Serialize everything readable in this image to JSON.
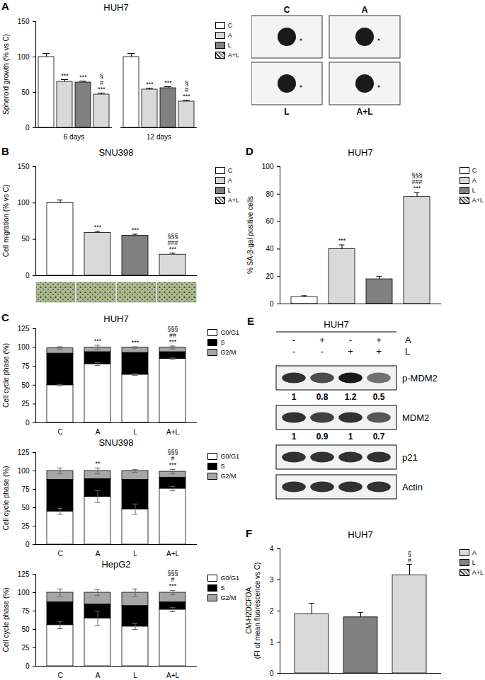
{
  "chart_data": [
    {
      "panel": "A",
      "type": "bar",
      "title": "HUH7",
      "ylabel": "Spheroid growth (% vs C)",
      "categories": [
        "6 days",
        "12 days"
      ],
      "series": [
        {
          "name": "C",
          "color": "#ffffff",
          "values": [
            100,
            100
          ],
          "errors": [
            5,
            5
          ],
          "annotations": [
            null,
            null
          ]
        },
        {
          "name": "A",
          "color": "#d9d9d9",
          "values": [
            65,
            54
          ],
          "errors": [
            3,
            2
          ],
          "annotations": [
            "***",
            "***"
          ]
        },
        {
          "name": "L",
          "color": "#808080",
          "values": [
            64,
            56
          ],
          "errors": [
            2,
            2
          ],
          "annotations": [
            "***",
            "***"
          ]
        },
        {
          "name": "A+L",
          "color": "#d9d9d9",
          "values": [
            47,
            37
          ],
          "errors": [
            2,
            2
          ],
          "annotations": [
            "§\n#\n***",
            "§\n#\n***"
          ]
        }
      ],
      "ylim": [
        0,
        150
      ],
      "yticks": [
        0,
        50,
        100,
        150
      ],
      "legend": "top-right"
    },
    {
      "panel": "B",
      "type": "bar",
      "title": "SNU398",
      "ylabel": "Cell migration (% vs C)",
      "categories": [
        "C",
        "A",
        "L",
        "A+L"
      ],
      "values": [
        100,
        59,
        55,
        29
      ],
      "errors": [
        4,
        2,
        2,
        2
      ],
      "annotations": [
        null,
        "***",
        "***",
        "§§§\n###\n***"
      ],
      "colors": [
        "#ffffff",
        "#d9d9d9",
        "#808080",
        "#d9d9d9"
      ],
      "ylim": [
        0,
        150
      ],
      "yticks": [
        0,
        50,
        100,
        150
      ],
      "legend": "top-right",
      "tick_labels": "y"
    },
    {
      "panel": "C",
      "type": "bar",
      "title": "HUH7",
      "ylabel": "Cell cycle phase (%)",
      "stacked": true,
      "categories": [
        "C",
        "A",
        "L",
        "A+L"
      ],
      "series": [
        {
          "name": "G0/G1",
          "color": "#ffffff",
          "values": [
            50,
            78,
            64,
            85
          ],
          "errors": [
            1,
            2,
            1,
            1
          ]
        },
        {
          "name": "S",
          "color": "#000000",
          "values": [
            42,
            16,
            29,
            9
          ]
        },
        {
          "name": "G2/M",
          "color": "#a6a6a6",
          "values": [
            7,
            6,
            7,
            6
          ],
          "errors": [
            2,
            3,
            1,
            2
          ]
        }
      ],
      "annotations": [
        null,
        "***",
        "***",
        "§§§\n##\n***"
      ],
      "ylim": [
        0,
        125
      ],
      "yticks": [
        0,
        25,
        50,
        75,
        100,
        125
      ],
      "legend": "top-right"
    },
    {
      "type": "bar",
      "title": "SNU398",
      "ylabel": "Cell cycle phase (%)",
      "stacked": true,
      "categories": [
        "C",
        "A",
        "L",
        "A+L"
      ],
      "series": [
        {
          "name": "G0/G1",
          "color": "#ffffff",
          "values": [
            45,
            65,
            48,
            76
          ],
          "errors": [
            4,
            8,
            7,
            3
          ]
        },
        {
          "name": "S",
          "color": "#000000",
          "values": [
            43,
            24,
            40,
            15
          ]
        },
        {
          "name": "G2/M",
          "color": "#a6a6a6",
          "values": [
            12,
            11,
            12,
            8
          ],
          "errors": [
            4,
            4,
            2,
            3
          ]
        }
      ],
      "annotations": [
        null,
        "**",
        null,
        "§§§\n#\n***"
      ],
      "ylim": [
        0,
        125
      ],
      "yticks": [
        0,
        25,
        50,
        75,
        100,
        125
      ],
      "legend": "top-right"
    },
    {
      "type": "bar",
      "title": "HepG2",
      "ylabel": "Cell cycle phase (%)",
      "stacked": true,
      "categories": [
        "C",
        "A",
        "L",
        "A+L"
      ],
      "series": [
        {
          "name": "G0/G1",
          "color": "#ffffff",
          "values": [
            56,
            65,
            54,
            77
          ],
          "errors": [
            5,
            10,
            4,
            3
          ]
        },
        {
          "name": "S",
          "color": "#000000",
          "values": [
            31,
            19,
            28,
            10
          ]
        },
        {
          "name": "G2/M",
          "color": "#a6a6a6",
          "values": [
            13,
            16,
            18,
            13
          ],
          "errors": [
            5,
            4,
            5,
            3
          ]
        }
      ],
      "annotations": [
        null,
        null,
        null,
        "§§§\n#\n***"
      ],
      "ylim": [
        0,
        125
      ],
      "yticks": [
        0,
        25,
        50,
        75,
        100,
        125
      ],
      "legend": "top-right"
    },
    {
      "panel": "D",
      "type": "bar",
      "title": "HUH7",
      "ylabel": "% SA-β-gal positive cells",
      "categories": [
        "C",
        "A",
        "L",
        "A+L"
      ],
      "values": [
        5,
        40,
        18,
        78
      ],
      "errors": [
        1,
        3,
        2,
        3
      ],
      "annotations": [
        null,
        "***",
        null,
        "§§§\n###\n***"
      ],
      "colors": [
        "#ffffff",
        "#d9d9d9",
        "#808080",
        "#d9d9d9"
      ],
      "ylim": [
        0,
        100
      ],
      "yticks": [
        0,
        20,
        40,
        60,
        80,
        100
      ],
      "legend": "top-right",
      "tick_labels": "y"
    },
    {
      "panel": "F",
      "type": "bar",
      "title": "HUH7",
      "ylabel": "CM-H2DCFDA\n(FI of mean fluorescence vs C)",
      "categories": [
        "A",
        "L",
        "A+L"
      ],
      "values": [
        1.9,
        1.8,
        3.15
      ],
      "errors": [
        0.35,
        0.15,
        0.35
      ],
      "annotations": [
        null,
        null,
        "§\n#"
      ],
      "colors": [
        "#d9d9d9",
        "#808080",
        "#d9d9d9"
      ],
      "ylim": [
        0,
        4
      ],
      "yticks": [
        0,
        1,
        2,
        3,
        4
      ],
      "legend": "top-right",
      "tick_labels": "y"
    }
  ],
  "spheroid_images": {
    "labels": [
      "C",
      "A",
      "L",
      "A+L"
    ]
  },
  "blot": {
    "panel": "E",
    "title": "HUH7",
    "treatments": [
      {
        "name": "A",
        "signs": [
          "-",
          "+",
          "-",
          "+"
        ]
      },
      {
        "name": "L",
        "signs": [
          "-",
          "-",
          "+",
          "+"
        ]
      }
    ],
    "bands": [
      {
        "name": "p-MDM2",
        "quantification": [
          1,
          0.8,
          1.2,
          0.5
        ]
      },
      {
        "name": "MDM2",
        "quantification": [
          1,
          0.9,
          1,
          0.7
        ]
      },
      {
        "name": "p21"
      },
      {
        "name": "Actin"
      }
    ]
  }
}
